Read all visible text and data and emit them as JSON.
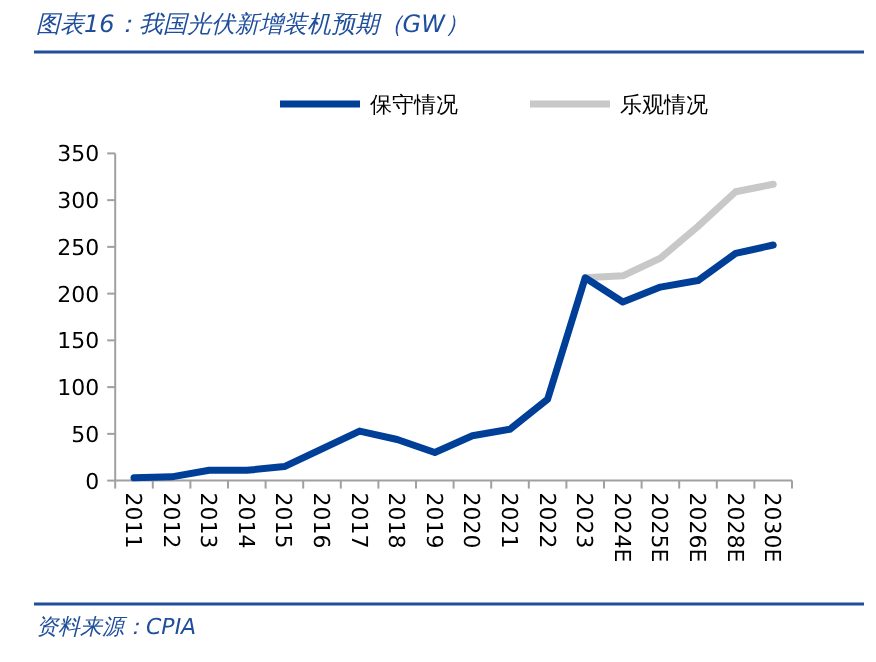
{
  "chart_data": {
    "type": "line",
    "title": "图表16：我国光伏新增装机预期（GW）",
    "categories": [
      "2011",
      "2012",
      "2013",
      "2014",
      "2015",
      "2016",
      "2017",
      "2018",
      "2019",
      "2020",
      "2021",
      "2022",
      "2023",
      "2024E",
      "2025E",
      "2026E",
      "2028E",
      "2030E"
    ],
    "series": [
      {
        "name": "保守情况",
        "color": "#003f98",
        "values": [
          3,
          4,
          11,
          11,
          15,
          34,
          53,
          44,
          30,
          48,
          55,
          87,
          217,
          191,
          207,
          214,
          243,
          252
        ]
      },
      {
        "name": "乐观情况",
        "color": "#c8c8c8",
        "values": [
          null,
          null,
          null,
          null,
          null,
          null,
          null,
          null,
          null,
          null,
          null,
          null,
          217,
          219,
          238,
          272,
          309,
          317
        ]
      }
    ],
    "ylim": [
      0,
      350
    ],
    "yticks": [
      0,
      50,
      100,
      150,
      200,
      250,
      300,
      350
    ],
    "grid": false,
    "legend": "top",
    "marker": "none",
    "line_style": "solid",
    "annotations": [
      "资料来源：CPIA"
    ]
  }
}
